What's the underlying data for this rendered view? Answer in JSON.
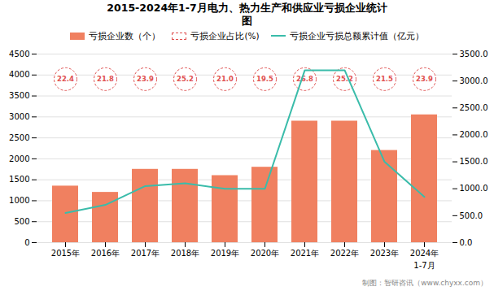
{
  "chart_data": {
    "type": "bar",
    "title": "2015-2024年1-7月电力、热力生产和供应业亏损企业统计",
    "subtitle": "图",
    "caption": "制图：智研咨讯（www.chyxx.com）",
    "categories": [
      "2015年",
      "2016年",
      "2017年",
      "2018年",
      "2019年",
      "2020年",
      "2021年",
      "2022年",
      "2023年",
      "2024年"
    ],
    "series": [
      {
        "name": "亏损企业数（个）",
        "type": "bar",
        "color": "#F08060",
        "values": [
          1350,
          1200,
          1750,
          1750,
          1600,
          1800,
          2900,
          2900,
          2200,
          3050
        ]
      },
      {
        "name": "亏损企业占比(%)",
        "type": "text",
        "color": "#E05050",
        "data_labels": true,
        "values": [
          22.4,
          21.8,
          23.9,
          25.2,
          21.0,
          19.5,
          26.8,
          25.2,
          21.5,
          23.9
        ],
        "value_labels": [
          "22.4",
          "21.8",
          "23.9",
          "25.2",
          "21.0",
          "19.5",
          "26.8",
          "25.2",
          "21.5",
          "23.9"
        ]
      },
      {
        "name": "亏损企业亏损总额累计值（亿元）",
        "type": "line",
        "axis": "y2",
        "color": "#3ABCAA",
        "values": [
          550,
          700,
          1050,
          1100,
          1000,
          1000,
          3200,
          3200,
          1500,
          850
        ]
      }
    ],
    "annotations": [
      {
        "text": "1-7月",
        "category": "2024年"
      }
    ],
    "ylim": [
      0,
      4500
    ],
    "yticks": [
      0,
      500,
      1000,
      1500,
      2000,
      2500,
      3000,
      3500,
      4000,
      4500
    ],
    "y2lim": [
      0.0,
      3500.0
    ],
    "y2ticks": [
      {
        "value": 0,
        "label": "0.0"
      },
      {
        "value": 500,
        "label": "500.0"
      },
      {
        "value": 1000,
        "label": "1000.0"
      },
      {
        "value": 1500,
        "label": "1500.0"
      },
      {
        "value": 2000,
        "label": "2000.0"
      },
      {
        "value": 2500,
        "label": "2500.0"
      },
      {
        "value": 3000,
        "label": "3000.0"
      },
      {
        "value": 3500,
        "label": "3500.0"
      }
    ],
    "grid": true,
    "legend": "top"
  }
}
